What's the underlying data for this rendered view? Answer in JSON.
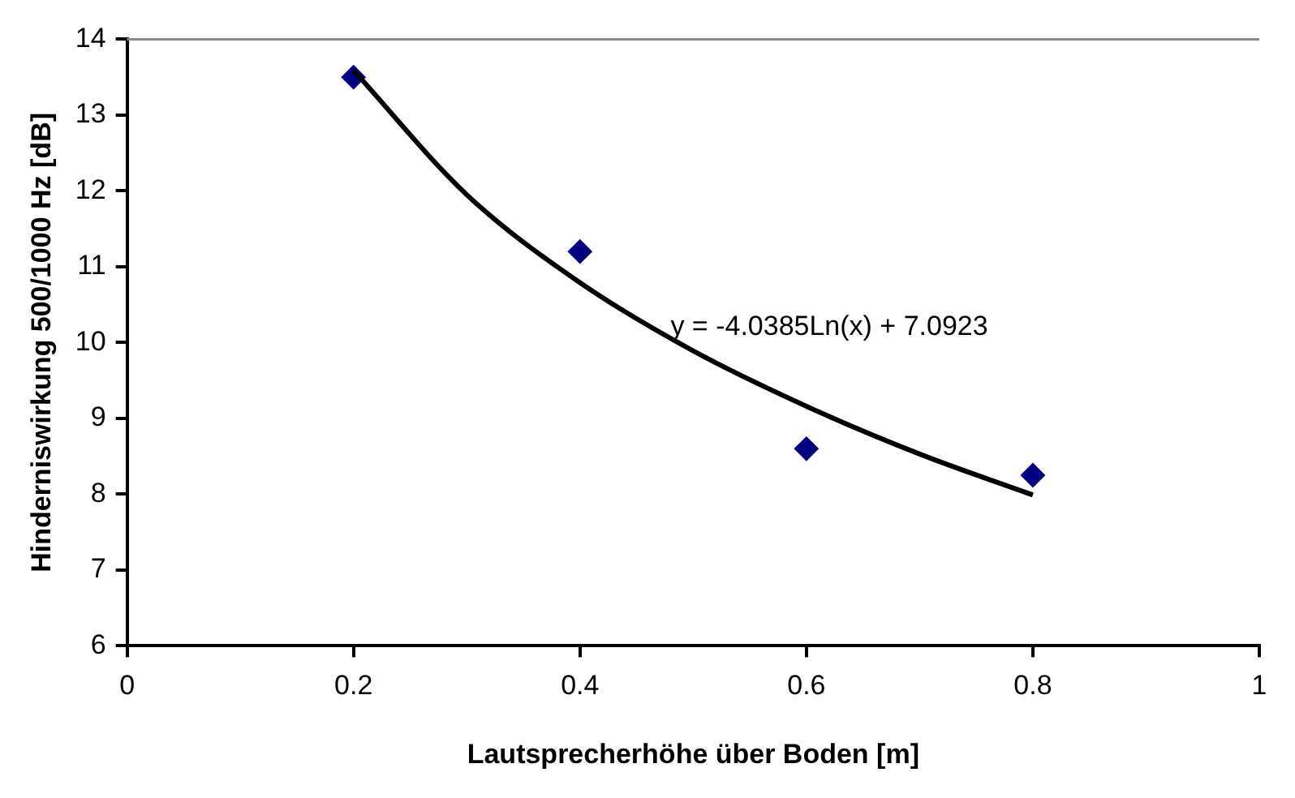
{
  "chart_data": {
    "type": "scatter",
    "xlabel": "Lautsprecherhöhe über Boden [m]",
    "ylabel": "Hinderniswirkung 500/1000 Hz [dB]",
    "xlim": [
      0,
      1
    ],
    "xticks": [
      0,
      0.2,
      0.4,
      0.6,
      0.8,
      1
    ],
    "ylim": [
      6,
      14
    ],
    "yticks": [
      6,
      7,
      8,
      9,
      10,
      11,
      12,
      13,
      14
    ],
    "grid": false,
    "legend": false,
    "marker": "diamond",
    "series": [
      {
        "color": "#000080",
        "x": [
          0.2,
          0.4,
          0.6,
          0.8
        ],
        "values": [
          13.5,
          11.2,
          8.6,
          8.25
        ]
      },
      {
        "type": "line",
        "color": "#000000",
        "marker": "none",
        "x": [
          0.2,
          0.3,
          0.4,
          0.5,
          0.6,
          0.7,
          0.8
        ],
        "values": [
          13.59,
          11.95,
          10.79,
          9.89,
          9.16,
          8.53,
          7.99
        ]
      }
    ],
    "annotations": [
      "y = -4.0385Ln(x) + 7.0923"
    ]
  }
}
